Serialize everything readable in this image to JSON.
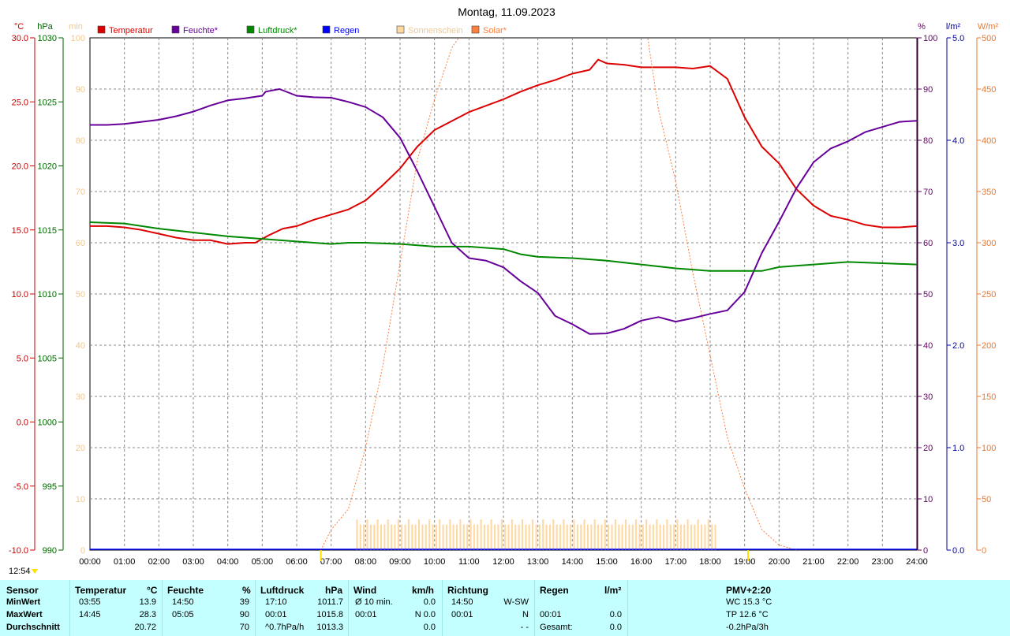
{
  "chart_data": {
    "type": "line",
    "title": "Montag, 11.09.2023",
    "x_ticks": [
      "00:00",
      "01:00",
      "02:00",
      "03:00",
      "04:00",
      "05:00",
      "06:00",
      "07:00",
      "08:00",
      "09:00",
      "10:00",
      "11:00",
      "12:00",
      "13:00",
      "14:00",
      "15:00",
      "16:00",
      "17:00",
      "18:00",
      "19:00",
      "20:00",
      "21:00",
      "22:00",
      "23:00",
      "24:00"
    ],
    "current_time": "12:54",
    "axes": {
      "temperature": {
        "unit": "°C",
        "color": "#cc0000",
        "min": -10,
        "max": 30,
        "ticks": [
          "30.0",
          "25.0",
          "20.0",
          "15.0",
          "10.0",
          "5.0",
          "0.0",
          "-5.0",
          "-10.0"
        ]
      },
      "pressure": {
        "unit": "hPa",
        "color": "#006600",
        "min": 990,
        "max": 1030,
        "ticks": [
          "1030",
          "1025",
          "1020",
          "1015",
          "1010",
          "1005",
          "1000",
          "995",
          "990"
        ]
      },
      "sunshine": {
        "unit": "min",
        "color": "#f0c890",
        "min": 0,
        "max": 100,
        "ticks": [
          "100",
          "90",
          "80",
          "70",
          "60",
          "50",
          "40",
          "30",
          "20",
          "10",
          "0"
        ]
      },
      "humidity": {
        "unit": "%",
        "color": "#660066",
        "min": 0,
        "max": 100,
        "ticks": [
          "100",
          "90",
          "80",
          "70",
          "60",
          "50",
          "40",
          "30",
          "20",
          "10",
          "0"
        ]
      },
      "rain": {
        "unit": "l/m²",
        "color": "#000099",
        "min": 0,
        "max": 5,
        "ticks": [
          "5.0",
          "4.0",
          "3.0",
          "2.0",
          "1.0",
          "0.0"
        ]
      },
      "solar": {
        "unit": "W/m²",
        "color": "#e87830",
        "min": 0,
        "max": 500,
        "ticks": [
          "500",
          "450",
          "400",
          "350",
          "300",
          "250",
          "200",
          "150",
          "100",
          "50",
          "0"
        ]
      }
    },
    "legend": [
      {
        "name": "Temperatur",
        "color": "#dd0000"
      },
      {
        "name": "Feuchte*",
        "color": "#660099"
      },
      {
        "name": "Luftdruck*",
        "color": "#008800"
      },
      {
        "name": "Regen",
        "color": "#0000ff"
      },
      {
        "name": "Sonnenschein",
        "color": "#ffd8a0"
      },
      {
        "name": "Solar*",
        "color": "#ff7f3f"
      }
    ],
    "series": [
      {
        "name": "Temperatur",
        "axis": "temperature",
        "color": "#dd0000",
        "points": [
          [
            0,
            15.3
          ],
          [
            0.5,
            15.3
          ],
          [
            1,
            15.2
          ],
          [
            1.5,
            15.0
          ],
          [
            2,
            14.7
          ],
          [
            2.5,
            14.4
          ],
          [
            3,
            14.2
          ],
          [
            3.5,
            14.2
          ],
          [
            4,
            13.9
          ],
          [
            4.5,
            14.0
          ],
          [
            4.8,
            14.0
          ],
          [
            5.2,
            14.6
          ],
          [
            5.6,
            15.1
          ],
          [
            6,
            15.3
          ],
          [
            6.5,
            15.8
          ],
          [
            7,
            16.2
          ],
          [
            7.5,
            16.6
          ],
          [
            8,
            17.3
          ],
          [
            8.5,
            18.5
          ],
          [
            9,
            19.8
          ],
          [
            9.5,
            21.5
          ],
          [
            10,
            22.8
          ],
          [
            10.5,
            23.5
          ],
          [
            11,
            24.2
          ],
          [
            11.5,
            24.7
          ],
          [
            12,
            25.2
          ],
          [
            12.5,
            25.8
          ],
          [
            13,
            26.3
          ],
          [
            13.5,
            26.7
          ],
          [
            14,
            27.2
          ],
          [
            14.5,
            27.5
          ],
          [
            14.75,
            28.3
          ],
          [
            15,
            28.0
          ],
          [
            15.5,
            27.9
          ],
          [
            16,
            27.7
          ],
          [
            16.5,
            27.7
          ],
          [
            17,
            27.7
          ],
          [
            17.5,
            27.6
          ],
          [
            18,
            27.8
          ],
          [
            18.5,
            26.8
          ],
          [
            18.8,
            25.0
          ],
          [
            19,
            23.8
          ],
          [
            19.5,
            21.5
          ],
          [
            20,
            20.2
          ],
          [
            20.5,
            18.2
          ],
          [
            21,
            16.9
          ],
          [
            21.5,
            16.1
          ],
          [
            22,
            15.8
          ],
          [
            22.5,
            15.4
          ],
          [
            23,
            15.2
          ],
          [
            23.5,
            15.2
          ],
          [
            24,
            15.3
          ]
        ]
      },
      {
        "name": "Feuchte*",
        "axis": "humidity",
        "color": "#660099",
        "points": [
          [
            0,
            83
          ],
          [
            0.5,
            83
          ],
          [
            1,
            83.2
          ],
          [
            1.5,
            83.6
          ],
          [
            2,
            84
          ],
          [
            2.5,
            84.7
          ],
          [
            3,
            85.6
          ],
          [
            3.5,
            86.8
          ],
          [
            4,
            87.8
          ],
          [
            4.5,
            88.2
          ],
          [
            5,
            88.7
          ],
          [
            5.1,
            89.5
          ],
          [
            5.5,
            90
          ],
          [
            6,
            88.7
          ],
          [
            6.5,
            88.4
          ],
          [
            7,
            88.3
          ],
          [
            7.5,
            87.5
          ],
          [
            8,
            86.5
          ],
          [
            8.5,
            84.5
          ],
          [
            9,
            80.5
          ],
          [
            9.5,
            74
          ],
          [
            10,
            67
          ],
          [
            10.5,
            60
          ],
          [
            11,
            57
          ],
          [
            11.5,
            56.5
          ],
          [
            12,
            55.2
          ],
          [
            12.5,
            52.5
          ],
          [
            13,
            50.2
          ],
          [
            13.5,
            45.7
          ],
          [
            14,
            44.1
          ],
          [
            14.5,
            42.2
          ],
          [
            15,
            42.3
          ],
          [
            15.5,
            43.2
          ],
          [
            16,
            44.8
          ],
          [
            16.5,
            45.5
          ],
          [
            17,
            44.6
          ],
          [
            17.5,
            45.3
          ],
          [
            18,
            46.1
          ],
          [
            18.5,
            46.8
          ],
          [
            19,
            50.4
          ],
          [
            19.5,
            58
          ],
          [
            20,
            64.1
          ],
          [
            20.5,
            70.6
          ],
          [
            21,
            75.7
          ],
          [
            21.5,
            78.4
          ],
          [
            22,
            79.8
          ],
          [
            22.5,
            81.6
          ],
          [
            23,
            82.6
          ],
          [
            23.5,
            83.6
          ],
          [
            24,
            83.8
          ]
        ]
      },
      {
        "name": "Luftdruck*",
        "axis": "pressure",
        "color": "#008800",
        "points": [
          [
            0,
            1015.6
          ],
          [
            1,
            1015.5
          ],
          [
            1.5,
            1015.3
          ],
          [
            2,
            1015.1
          ],
          [
            3,
            1014.8
          ],
          [
            4,
            1014.5
          ],
          [
            5,
            1014.3
          ],
          [
            6,
            1014.1
          ],
          [
            7,
            1013.9
          ],
          [
            7.5,
            1014.0
          ],
          [
            8,
            1014.0
          ],
          [
            9,
            1013.9
          ],
          [
            10,
            1013.7
          ],
          [
            11,
            1013.7
          ],
          [
            12,
            1013.5
          ],
          [
            12.5,
            1013.1
          ],
          [
            13,
            1012.9
          ],
          [
            14,
            1012.8
          ],
          [
            15,
            1012.6
          ],
          [
            16,
            1012.3
          ],
          [
            17,
            1012.0
          ],
          [
            18,
            1011.8
          ],
          [
            19,
            1011.8
          ],
          [
            19.5,
            1011.8
          ],
          [
            20,
            1012.1
          ],
          [
            21,
            1012.3
          ],
          [
            22,
            1012.5
          ],
          [
            23,
            1012.4
          ],
          [
            24,
            1012.3
          ]
        ]
      },
      {
        "name": "Solar*",
        "axis": "solar",
        "color": "#ff7f3f",
        "points": [
          [
            6.7,
            0
          ],
          [
            7,
            20
          ],
          [
            7.5,
            40
          ],
          [
            8,
            100
          ],
          [
            8.5,
            180
          ],
          [
            9,
            280
          ],
          [
            9.5,
            380
          ],
          [
            10,
            440
          ],
          [
            10.5,
            490
          ],
          [
            11.1,
            520
          ],
          [
            12,
            520
          ],
          [
            16.1,
            520
          ],
          [
            16.5,
            430
          ],
          [
            17,
            360
          ],
          [
            17.5,
            270
          ],
          [
            18,
            190
          ],
          [
            18.5,
            110
          ],
          [
            19,
            60
          ],
          [
            19.5,
            20
          ],
          [
            20,
            5
          ],
          [
            20.5,
            0
          ]
        ]
      },
      {
        "name": "Sonnenschein",
        "axis": "sunshine",
        "color": "#ffd8a0",
        "type": "bars",
        "range": [
          7.75,
          18.25
        ],
        "step": 0.1,
        "values_range": [
          5,
          6
        ]
      }
    ]
  },
  "footer": {
    "col_headers": {
      "sensor": "Sensor",
      "temp": "Temperatur",
      "temp_unit": "°C",
      "hum": "Feuchte",
      "hum_unit": "%",
      "press": "Luftdruck",
      "press_unit": "hPa",
      "wind": "Wind",
      "wind_unit": "km/h",
      "dir": "Richtung",
      "rain": "Regen",
      "rain_unit": "l/m²",
      "pmv": "PMV+2:20"
    },
    "rows": [
      {
        "label": "MinWert",
        "temp_time": "03:55",
        "temp_val": "13.9",
        "hum_time": "14:50",
        "hum_val": "39",
        "press_time": "17:10",
        "press_val": "1011.7",
        "wind_time": "Ø 10 min.",
        "wind_val": "0.0",
        "dir_time": "14:50",
        "dir_val": "W-SW",
        "rain_time": "",
        "rain_val": "",
        "extra": "WC 15.3 °C"
      },
      {
        "label": "MaxWert",
        "temp_time": "14:45",
        "temp_val": "28.3",
        "hum_time": "05:05",
        "hum_val": "90",
        "press_time": "00:01",
        "press_val": "1015.8",
        "wind_time": "00:01",
        "wind_val": "N 0.0",
        "dir_time": "00:01",
        "dir_val": "N",
        "rain_time": "00:01",
        "rain_val": "0.0",
        "extra": "TP 12.6 °C"
      },
      {
        "label": "Durchschnitt",
        "temp_time": "",
        "temp_val": "20.72",
        "hum_time": "",
        "hum_val": "70",
        "press_time": "^0.7hPa/h",
        "press_val": "1013.3",
        "wind_time": "",
        "wind_val": "0.0",
        "dir_time": "",
        "dir_val": "- -",
        "rain_time": "Gesamt:",
        "rain_val": "0.0",
        "extra": "-0.2hPa/3h"
      }
    ]
  }
}
